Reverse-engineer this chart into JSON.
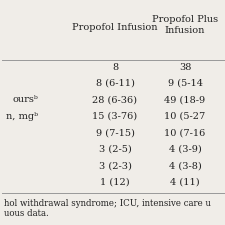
{
  "header1_left": "Propofol Infusion",
  "header2_line1": "Propofol Plus",
  "header2_line2": "Infusion",
  "col1_values": [
    "8",
    "8 (6-11)",
    "28 (6-36)",
    "15 (3-76)",
    "9 (7-15)",
    "3 (2-5)",
    "3 (2-3)",
    "1 (12)"
  ],
  "col2_values": [
    "38",
    "9 (5-14",
    "49 (18-9",
    "10 (5-27",
    "10 (7-16",
    "4 (3-9)",
    "4 (3-8)",
    "4 (11)"
  ],
  "left_labels": [
    "",
    "",
    "oursᵇ",
    "n, mgᵇ",
    "",
    "",
    "",
    ""
  ],
  "footer1": "hol withdrawal syndrome; ICU, intensive care u",
  "footer2": "uous data.",
  "background_color": "#f0ede8",
  "line_color": "#999999",
  "font_size": 7.0,
  "footer_font_size": 6.2
}
